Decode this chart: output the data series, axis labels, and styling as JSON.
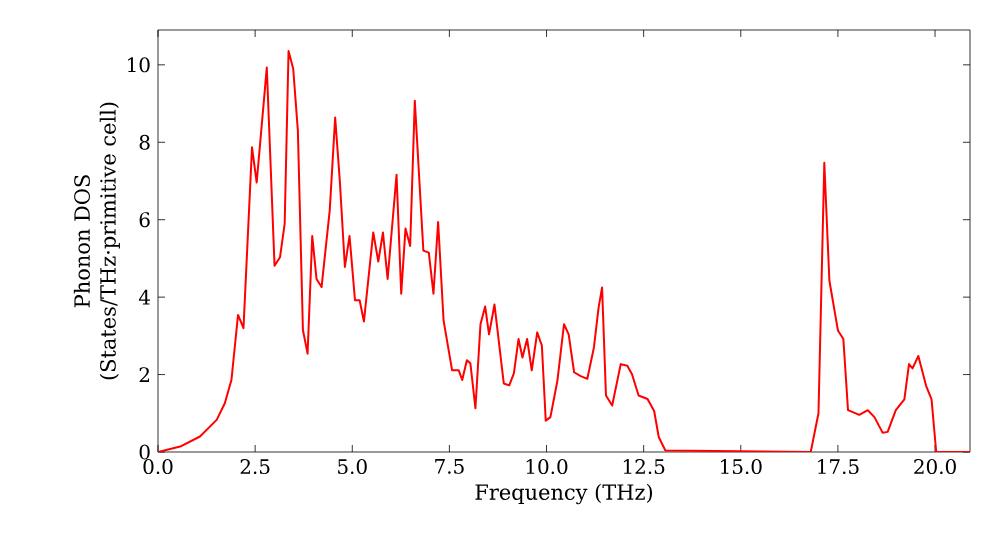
{
  "chart_data": {
    "type": "line",
    "xlabel": "Frequency (THz)",
    "ylabel": "Phonon DOS\n(States/THz·primitive cell)",
    "xlim": [
      0,
      20.9
    ],
    "ylim": [
      0,
      10.9
    ],
    "xticks": [
      {
        "value": 0,
        "label": "0.0"
      },
      {
        "value": 2.5,
        "label": "2.5"
      },
      {
        "value": 5,
        "label": "5.0"
      },
      {
        "value": 7.5,
        "label": "7.5"
      },
      {
        "value": 10,
        "label": "10.0"
      },
      {
        "value": 12.5,
        "label": "12.5"
      },
      {
        "value": 15,
        "label": "15.0"
      },
      {
        "value": 17.5,
        "label": "17.5"
      },
      {
        "value": 20,
        "label": "20.0"
      }
    ],
    "yticks": [
      0,
      2,
      4,
      6,
      8,
      10
    ],
    "grid": false,
    "marker": "none",
    "line_style": "solid",
    "series": [
      {
        "color": "#ff0000",
        "x": [
          0,
          0.57,
          1.08,
          1.51,
          1.72,
          1.89,
          2.06,
          2.2,
          2.42,
          2.54,
          2.8,
          3.0,
          3.14,
          3.26,
          3.36,
          3.48,
          3.6,
          3.73,
          3.85,
          3.97,
          4.08,
          4.21,
          4.42,
          4.56,
          4.68,
          4.81,
          4.93,
          5.07,
          5.19,
          5.3,
          5.54,
          5.67,
          5.79,
          5.91,
          6.14,
          6.26,
          6.37,
          6.49,
          6.61,
          6.83,
          6.97,
          7.09,
          7.21,
          7.35,
          7.57,
          7.74,
          7.83,
          7.95,
          8.04,
          8.17,
          8.3,
          8.42,
          8.52,
          8.66,
          8.9,
          9.04,
          9.16,
          9.28,
          9.38,
          9.5,
          9.62,
          9.76,
          9.88,
          9.98,
          10.1,
          10.28,
          10.45,
          10.57,
          10.71,
          10.88,
          11.05,
          11.22,
          11.34,
          11.43,
          11.53,
          11.69,
          11.91,
          12.08,
          12.2,
          12.37,
          12.6,
          12.77,
          12.89,
          13.06,
          16.8,
          17.0,
          17.15,
          17.28,
          17.5,
          17.64,
          17.76,
          18.05,
          18.27,
          18.44,
          18.65,
          18.78,
          18.99,
          19.21,
          19.33,
          19.42,
          19.57,
          19.77,
          19.91,
          20.03,
          20.9
        ],
        "values": [
          0,
          0.14,
          0.4,
          0.83,
          1.26,
          1.86,
          3.54,
          3.2,
          7.87,
          6.96,
          9.93,
          4.81,
          5.03,
          5.89,
          10.36,
          9.9,
          8.3,
          3.15,
          2.54,
          5.58,
          4.47,
          4.26,
          6.24,
          8.64,
          7.0,
          4.78,
          5.58,
          3.92,
          3.92,
          3.37,
          5.67,
          4.92,
          5.67,
          4.47,
          7.16,
          4.09,
          5.77,
          5.32,
          9.07,
          5.2,
          5.15,
          4.09,
          5.94,
          3.4,
          2.11,
          2.11,
          1.86,
          2.37,
          2.29,
          1.13,
          3.3,
          3.76,
          3.04,
          3.81,
          1.77,
          1.72,
          2.03,
          2.92,
          2.44,
          2.92,
          2.11,
          3.09,
          2.75,
          0.81,
          0.9,
          1.84,
          3.3,
          3.04,
          2.06,
          1.96,
          1.89,
          2.7,
          3.73,
          4.25,
          1.46,
          1.2,
          2.27,
          2.23,
          2.01,
          1.46,
          1.37,
          1.06,
          0.38,
          0.04,
          0,
          1.0,
          7.47,
          4.43,
          3.14,
          2.92,
          1.08,
          0.96,
          1.08,
          0.9,
          0.5,
          0.52,
          1.08,
          1.36,
          2.27,
          2.16,
          2.48,
          1.71,
          1.36,
          0,
          0
        ]
      }
    ]
  }
}
